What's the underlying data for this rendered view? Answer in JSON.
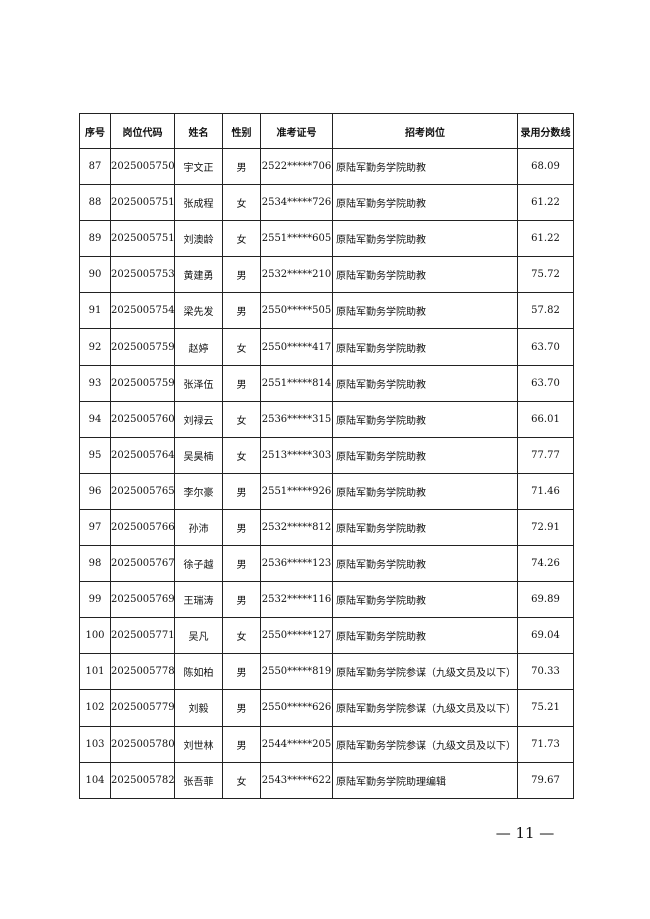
{
  "table": {
    "header": [
      "序号",
      "岗位代码",
      "姓名",
      "性别",
      "准考证号",
      "招考岗位",
      "录用分数线"
    ],
    "rows": [
      [
        "87",
        "2025005750",
        "宇文正",
        "男",
        "2522*****706",
        "原陆军勤务学院助教",
        "68.09"
      ],
      [
        "88",
        "2025005751",
        "张成程",
        "女",
        "2534*****726",
        "原陆军勤务学院助教",
        "61.22"
      ],
      [
        "89",
        "2025005751",
        "刘澳龄",
        "女",
        "2551*****605",
        "原陆军勤务学院助教",
        "61.22"
      ],
      [
        "90",
        "2025005753",
        "黄建勇",
        "男",
        "2532*****210",
        "原陆军勤务学院助教",
        "75.72"
      ],
      [
        "91",
        "2025005754",
        "梁先发",
        "男",
        "2550*****505",
        "原陆军勤务学院助教",
        "57.82"
      ],
      [
        "92",
        "2025005759",
        "赵婷",
        "女",
        "2550*****417",
        "原陆军勤务学院助教",
        "63.70"
      ],
      [
        "93",
        "2025005759",
        "张泽伍",
        "男",
        "2551*****814",
        "原陆军勤务学院助教",
        "63.70"
      ],
      [
        "94",
        "2025005760",
        "刘禄云",
        "女",
        "2536*****315",
        "原陆军勤务学院助教",
        "66.01"
      ],
      [
        "95",
        "2025005764",
        "吴昊楠",
        "女",
        "2513*****303",
        "原陆军勤务学院助教",
        "77.77"
      ],
      [
        "96",
        "2025005765",
        "李尔豪",
        "男",
        "2551*****926",
        "原陆军勤务学院助教",
        "71.46"
      ],
      [
        "97",
        "2025005766",
        "孙沛",
        "男",
        "2532*****812",
        "原陆军勤务学院助教",
        "72.91"
      ],
      [
        "98",
        "2025005767",
        "徐子越",
        "男",
        "2536*****123",
        "原陆军勤务学院助教",
        "74.26"
      ],
      [
        "99",
        "2025005769",
        "王瑞涛",
        "男",
        "2532*****116",
        "原陆军勤务学院助教",
        "69.89"
      ],
      [
        "100",
        "2025005771",
        "吴凡",
        "女",
        "2550*****127",
        "原陆军勤务学院助教",
        "69.04"
      ],
      [
        "101",
        "2025005778",
        "陈如柏",
        "男",
        "2550*****819",
        "原陆军勤务学院参谋（九级文员及以下）",
        "70.33"
      ],
      [
        "102",
        "2025005779",
        "刘毅",
        "男",
        "2550*****626",
        "原陆军勤务学院参谋（九级文员及以下）",
        "75.21"
      ],
      [
        "103",
        "2025005780",
        "刘世林",
        "男",
        "2544*****205",
        "原陆军勤务学院参谋（九级文员及以下）",
        "71.73"
      ],
      [
        "104",
        "2025005782",
        "张吾菲",
        "女",
        "2543*****622",
        "原陆军勤务学院助理编辑",
        "79.67"
      ]
    ]
  },
  "footer": {
    "page": "— 11 —"
  }
}
